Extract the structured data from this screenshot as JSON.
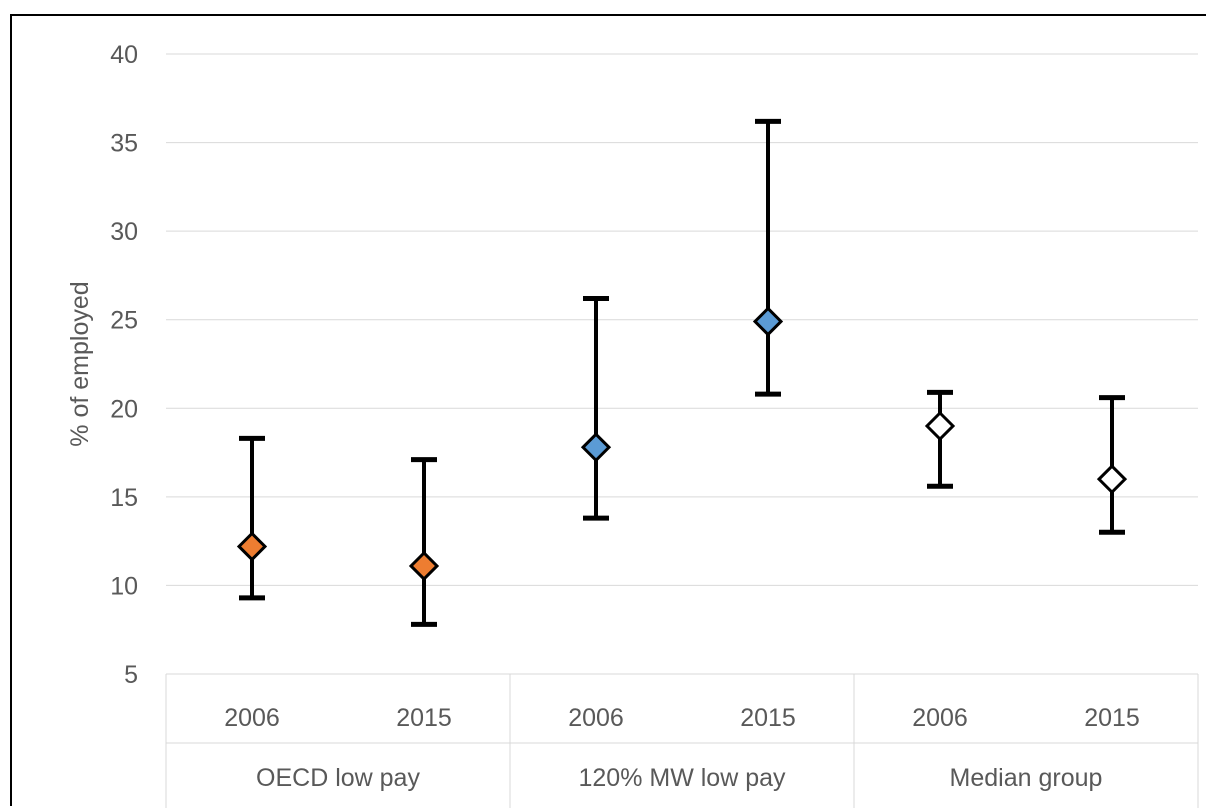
{
  "chart_data": {
    "type": "scatter",
    "title": "",
    "xlabel": "",
    "ylabel": "% of employed",
    "ylim": [
      5,
      40
    ],
    "yticks": [
      5,
      10,
      15,
      20,
      25,
      30,
      35,
      40
    ],
    "grid": true,
    "legend": "none",
    "groups": [
      {
        "label": "OECD low pay",
        "color": "#ED7D31",
        "points": [
          {
            "category": "2006",
            "value": 12.2,
            "low": 9.3,
            "high": 18.3
          },
          {
            "category": "2015",
            "value": 11.1,
            "low": 7.8,
            "high": 17.1
          }
        ]
      },
      {
        "label": "120% MW low pay",
        "color": "#5B9BD5",
        "points": [
          {
            "category": "2006",
            "value": 17.8,
            "low": 13.8,
            "high": 26.2
          },
          {
            "category": "2015",
            "value": 24.9,
            "low": 20.8,
            "high": 36.2
          }
        ]
      },
      {
        "label": "Median group",
        "color": "#FFFFFF",
        "points": [
          {
            "category": "2006",
            "value": 19.0,
            "low": 15.6,
            "high": 20.9
          },
          {
            "category": "2015",
            "value": 16.0,
            "low": 13.0,
            "high": 20.6
          }
        ]
      }
    ]
  }
}
